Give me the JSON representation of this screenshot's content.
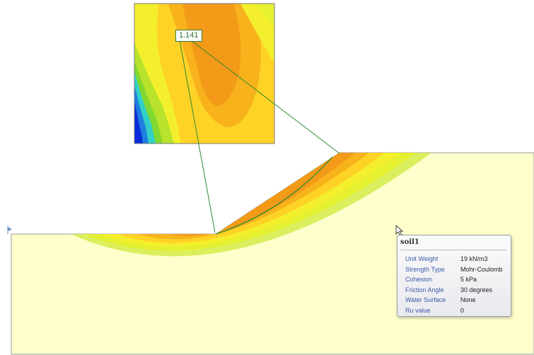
{
  "factor_of_safety_label": "1.141",
  "material_tooltip": {
    "title": "soil1",
    "properties": [
      {
        "key": "Unit Weight",
        "value": "19 kN/m3"
      },
      {
        "key": "Strength Type",
        "value": "Mohr-Coulomb"
      },
      {
        "key": "Cohesion",
        "value": "5 kPa"
      },
      {
        "key": "Friction Angle",
        "value": "30 degrees"
      },
      {
        "key": "Water Surface",
        "value": "None"
      },
      {
        "key": "Ru value",
        "value": "0"
      }
    ]
  },
  "colors": {
    "soil_fill": "#ffffcc",
    "soil_edge": "#9a9a9a",
    "contour_dark": "#f39a18",
    "contour_orange": "#f7b21c",
    "contour_yellow": "#ffd226",
    "contour_lightyellow": "#f4ef2c",
    "contour_green": "#b8e22c",
    "contour_lightgreen": "#82d830",
    "contour_cyan": "#30d0c8",
    "contour_blue": "#0b2ad8",
    "slip_line": "#2e8b2e"
  },
  "icons": {
    "cursor": "mouse-pointer-icon",
    "axis": "axis-arrow-icon"
  }
}
